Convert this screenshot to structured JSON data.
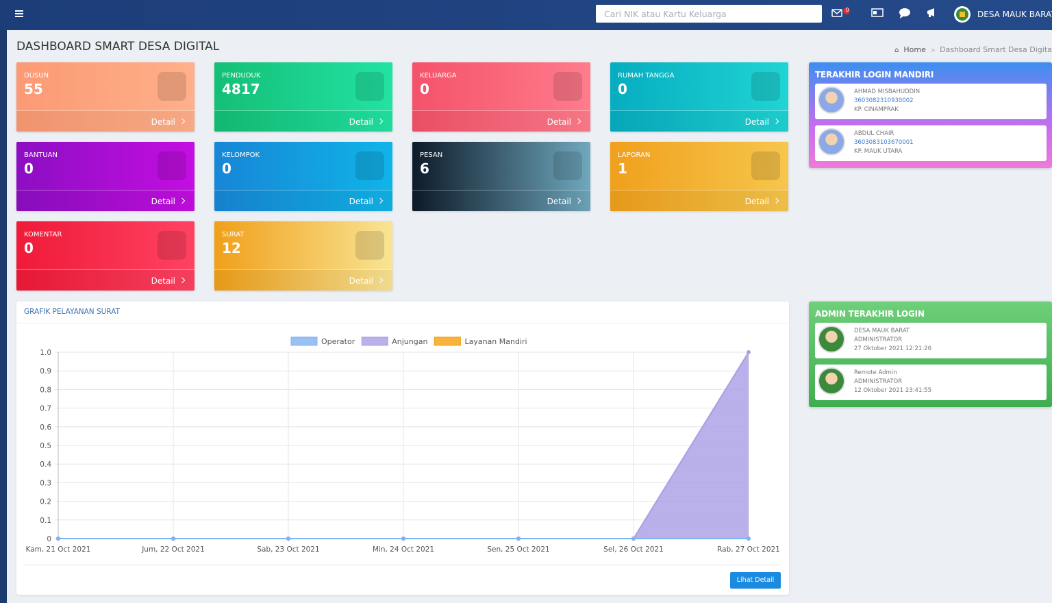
{
  "header": {
    "search_placeholder": "Cari NIK atau Kartu Keluarga",
    "mail_badge": "0",
    "user_name": "DESA MAUK BARAT"
  },
  "page": {
    "title": "DASHBOARD SMART DESA DIGITAL",
    "breadcrumb": [
      "Home",
      "Dashboard Smart Desa Digital"
    ]
  },
  "cards": [
    {
      "label": "DUSUN",
      "value": 55,
      "link": "Detail"
    },
    {
      "label": "PENDUDUK",
      "value": 4817,
      "link": "Detail"
    },
    {
      "label": "KELUARGA",
      "value": 0,
      "link": "Detail"
    },
    {
      "label": "RUMAH TANGGA",
      "value": 0,
      "link": "Detail"
    },
    {
      "label": "BANTUAN",
      "value": 0,
      "link": "Detail"
    },
    {
      "label": "KELOMPOK",
      "value": 0,
      "link": "Detail"
    },
    {
      "label": "PESAN",
      "value": 6,
      "link": "Detail"
    },
    {
      "label": "LAPORAN",
      "value": 1,
      "link": "Detail"
    },
    {
      "label": "KOMENTAR",
      "value": 0,
      "link": "Detail"
    },
    {
      "label": "SURAT",
      "value": 12,
      "link": "Detail"
    }
  ],
  "login_mandiri": {
    "title": "TERAKHIR LOGIN MANDIRI",
    "entries": [
      {
        "name": "AHMAD MISBAHUDDIN",
        "nik": "3603082310930002",
        "address": "KP. CINAMPRAK"
      },
      {
        "name": "ABDUL CHAIR",
        "nik": "3603083103670001",
        "address": "KP. MAUK UTARA"
      }
    ]
  },
  "admin_login": {
    "title": "ADMIN TERAKHIR LOGIN",
    "entries": [
      {
        "name": "DESA MAUK BARAT",
        "role": "ADMINISTRATOR",
        "time": "27 Oktober 2021 12:21:26"
      },
      {
        "name": "Remote Admin",
        "role": "ADMINISTRATOR",
        "time": "12 Oktober 2021 23:41:55"
      }
    ]
  },
  "chart_data": {
    "type": "line",
    "title": "GRAFIK PELAYANAN SURAT",
    "categories": [
      "Kam, 21 Oct 2021",
      "Jum, 22 Oct 2021",
      "Sab, 23 Oct 2021",
      "Min, 24 Oct 2021",
      "Sen, 25 Oct 2021",
      "Sel, 26 Oct 2021",
      "Rab, 27 Oct 2021"
    ],
    "series": [
      {
        "name": "Operator",
        "color": "#7fb2f0",
        "values": [
          0,
          0,
          0,
          0,
          0,
          0,
          0
        ]
      },
      {
        "name": "Anjungan",
        "color": "#a99ee6",
        "values": [
          0,
          0,
          0,
          0,
          0,
          0,
          1
        ]
      },
      {
        "name": "Layanan Mandiri",
        "color": "#f5a00c",
        "values": [
          0,
          0,
          0,
          0,
          0,
          0,
          0
        ]
      }
    ],
    "ylim": [
      0,
      1
    ],
    "yticks": [
      0,
      0.1,
      0.2,
      0.3,
      0.4,
      0.5,
      0.6,
      0.7,
      0.8,
      0.9,
      {
        "value": 1,
        "label": "1.0"
      }
    ],
    "grid": true,
    "legend": "top"
  },
  "chart_panel": {
    "button": "Lihat Detail"
  }
}
